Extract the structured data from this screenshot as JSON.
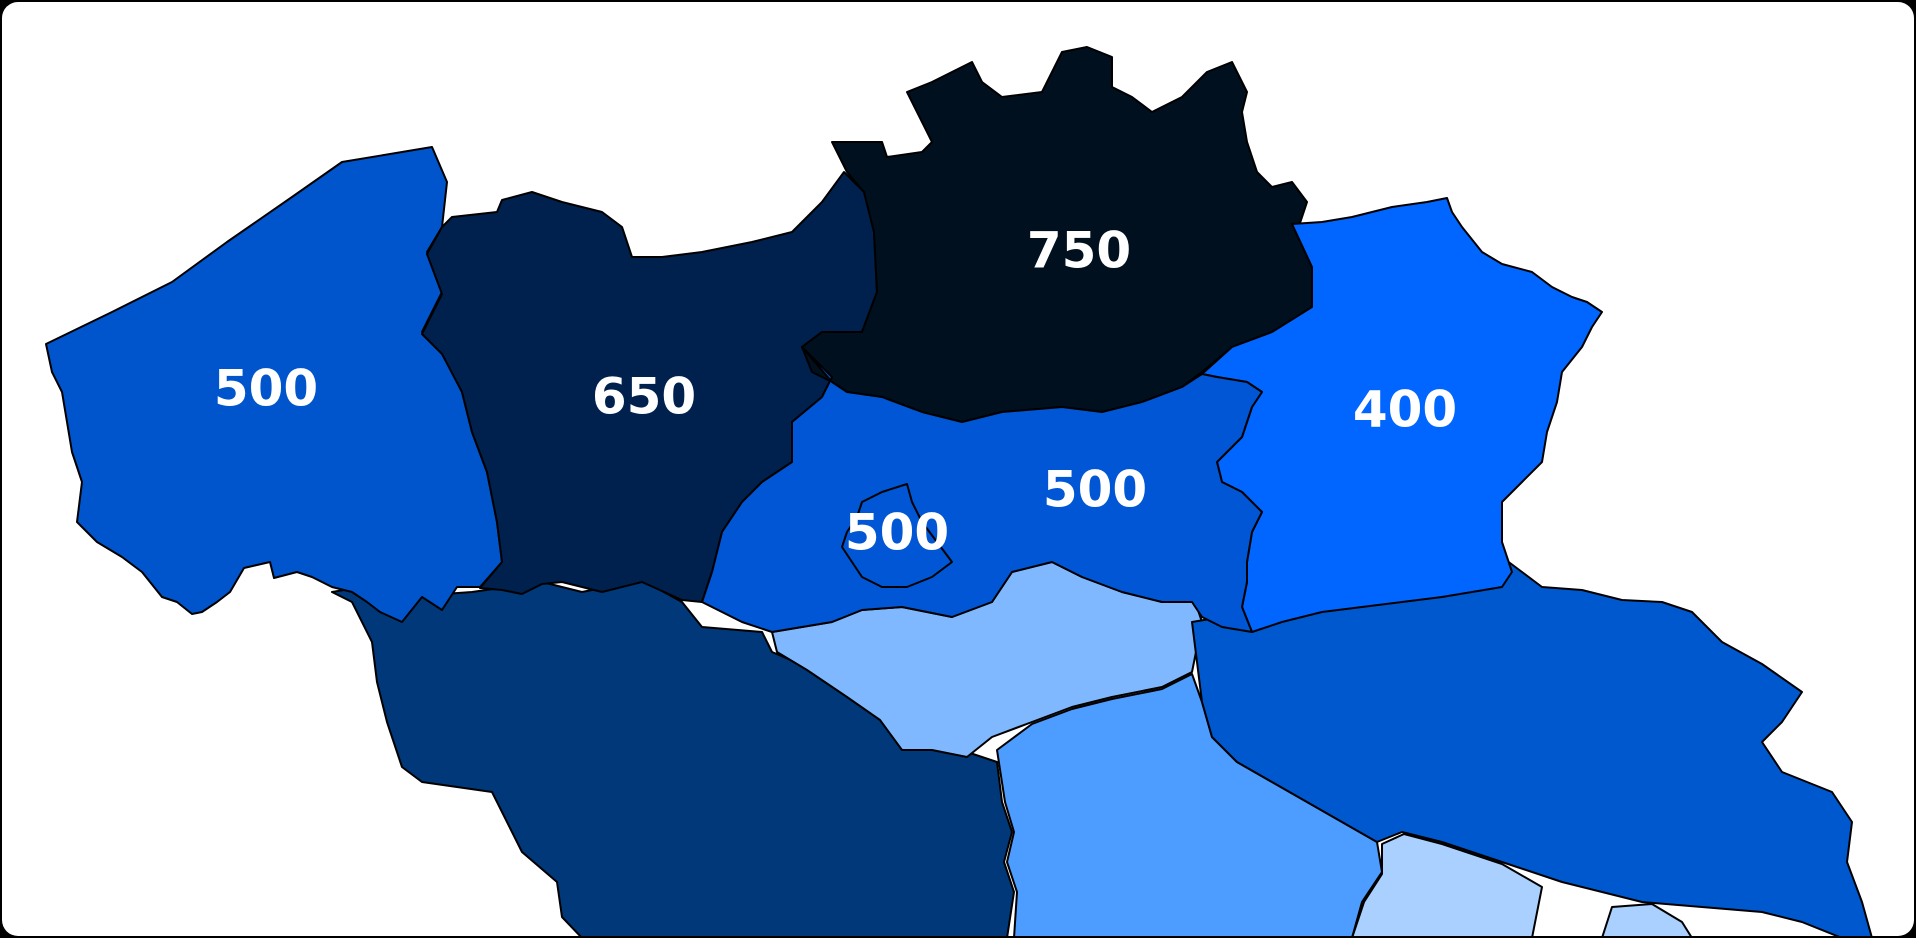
{
  "map": {
    "regions": [
      {
        "id": "west-flanders",
        "value": "500",
        "color": "#0055CC"
      },
      {
        "id": "east-flanders",
        "value": "650",
        "color": "#00214D"
      },
      {
        "id": "antwerp",
        "value": "750",
        "color": "#00101F"
      },
      {
        "id": "limburg",
        "value": "400",
        "color": "#0066FF"
      },
      {
        "id": "flemish-brabant",
        "value": "500",
        "color": "#0056D4"
      },
      {
        "id": "brussels",
        "value": "500",
        "color": "#0056D4"
      },
      {
        "id": "hainaut",
        "value": "",
        "color": "#00387A"
      },
      {
        "id": "walloon-brabant",
        "value": "",
        "color": "#80B8FF"
      },
      {
        "id": "namur",
        "value": "",
        "color": "#4D9CFF"
      },
      {
        "id": "liege",
        "value": "",
        "color": "#0058CF"
      },
      {
        "id": "luxembourg",
        "value": "",
        "color": "#A9D0FF"
      }
    ]
  }
}
